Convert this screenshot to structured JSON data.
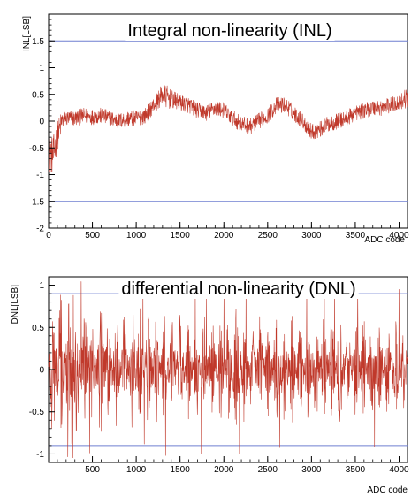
{
  "chart_data": [
    {
      "type": "line",
      "title": "Integral non-linearity (INL)",
      "xlabel": "ADC code",
      "ylabel": "INL[LSB]",
      "xlim": [
        0,
        4096
      ],
      "ylim": [
        -2,
        2
      ],
      "x_ticks": [
        0,
        500,
        1000,
        1500,
        2000,
        2500,
        3000,
        3500,
        4000
      ],
      "y_ticks": [
        -2,
        -1.5,
        -1,
        -0.5,
        0,
        0.5,
        1,
        1.5
      ],
      "grid": false,
      "legend": "none",
      "reference_lines": [
        1.5,
        -1.5
      ],
      "series": [
        {
          "line_color": "#c0392b",
          "reference_color": "#6f7fd0",
          "x": [
            0,
            50,
            100,
            150,
            200,
            300,
            400,
            500,
            600,
            700,
            800,
            900,
            1000,
            1100,
            1200,
            1300,
            1350,
            1400,
            1500,
            1600,
            1700,
            1800,
            1900,
            2000,
            2100,
            2200,
            2300,
            2400,
            2500,
            2600,
            2700,
            2800,
            2900,
            3000,
            3100,
            3200,
            3300,
            3400,
            3500,
            3600,
            3700,
            3800,
            3900,
            4000,
            4096
          ],
          "y": [
            -0.6,
            -0.65,
            -0.3,
            0.0,
            0.05,
            0.05,
            0.1,
            0.08,
            0.1,
            0.05,
            0.0,
            0.05,
            0.05,
            0.1,
            0.3,
            0.5,
            0.45,
            0.4,
            0.35,
            0.3,
            0.2,
            0.15,
            0.25,
            0.2,
            0.05,
            -0.05,
            -0.1,
            0.0,
            0.1,
            0.3,
            0.3,
            0.15,
            0.0,
            -0.2,
            -0.15,
            -0.05,
            0.0,
            0.05,
            0.15,
            0.2,
            0.25,
            0.25,
            0.3,
            0.35,
            0.45
          ],
          "band": [
            0.35,
            0.35,
            0.3,
            0.2,
            0.15,
            0.15,
            0.15,
            0.15,
            0.15,
            0.15,
            0.15,
            0.15,
            0.15,
            0.15,
            0.15,
            0.2,
            0.22,
            0.18,
            0.15,
            0.15,
            0.15,
            0.15,
            0.15,
            0.15,
            0.15,
            0.15,
            0.15,
            0.15,
            0.15,
            0.15,
            0.15,
            0.15,
            0.15,
            0.15,
            0.15,
            0.15,
            0.15,
            0.15,
            0.15,
            0.15,
            0.15,
            0.15,
            0.15,
            0.15,
            0.2
          ]
        }
      ]
    },
    {
      "type": "line",
      "title": "differential non-linearity (DNL)",
      "xlabel": "ADC code",
      "ylabel": "DNL[LSB]",
      "xlim": [
        0,
        4096
      ],
      "ylim": [
        -1.1,
        1.1
      ],
      "x_ticks": [
        500,
        1000,
        1500,
        2000,
        2500,
        3000,
        3500,
        4000
      ],
      "y_ticks": [
        -1,
        -0.5,
        0,
        0.5,
        1
      ],
      "grid": false,
      "legend": "none",
      "reference_lines": [
        0.9,
        -0.9
      ],
      "series": [
        {
          "line_color": "#c0392b",
          "reference_color": "#6f7fd0",
          "x": [
            0,
            100,
            200,
            300,
            400,
            500,
            600,
            700,
            800,
            900,
            1000,
            1100,
            1200,
            1300,
            1400,
            1500,
            1600,
            1700,
            1800,
            1900,
            2000,
            2100,
            2200,
            2300,
            2400,
            2500,
            2600,
            2700,
            2800,
            2900,
            3000,
            3100,
            3200,
            3300,
            3400,
            3500,
            3600,
            3700,
            3800,
            3900,
            4000,
            4096
          ],
          "y": [
            0.95,
            0.85,
            0.75,
            0.7,
            0.65,
            0.7,
            0.75,
            0.6,
            0.6,
            0.55,
            0.65,
            0.6,
            0.55,
            0.55,
            0.55,
            0.6,
            0.5,
            0.55,
            0.55,
            0.55,
            0.55,
            0.6,
            0.6,
            0.55,
            0.55,
            0.5,
            0.55,
            0.55,
            0.55,
            0.5,
            0.55,
            0.6,
            0.55,
            0.6,
            0.5,
            0.55,
            0.5,
            0.5,
            0.5,
            0.5,
            0.5,
            0.5
          ]
        }
      ]
    }
  ]
}
